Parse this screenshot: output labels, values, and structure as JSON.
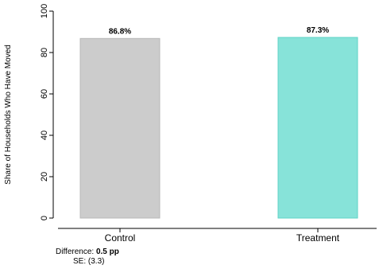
{
  "chart_data": {
    "type": "bar",
    "categories": [
      "Control",
      "Treatment"
    ],
    "values": [
      86.8,
      87.3
    ],
    "data_labels": [
      "86.8%",
      "87.3%"
    ],
    "colors": [
      "#cccccc",
      "#87e3d9"
    ],
    "edge_colors": [
      "#b8b8b8",
      "#5fd3c6"
    ],
    "title": "",
    "xlabel": "",
    "ylabel": "Share of Households Who Have Moved",
    "ylim": [
      0,
      100
    ],
    "yticks": [
      0,
      20,
      40,
      60,
      80,
      100
    ],
    "grid": false,
    "legend": "none"
  },
  "note": {
    "difference_label": "Difference:",
    "difference_value": "0.5 pp",
    "se_label": "SE:",
    "se_value": "(3.3)"
  }
}
